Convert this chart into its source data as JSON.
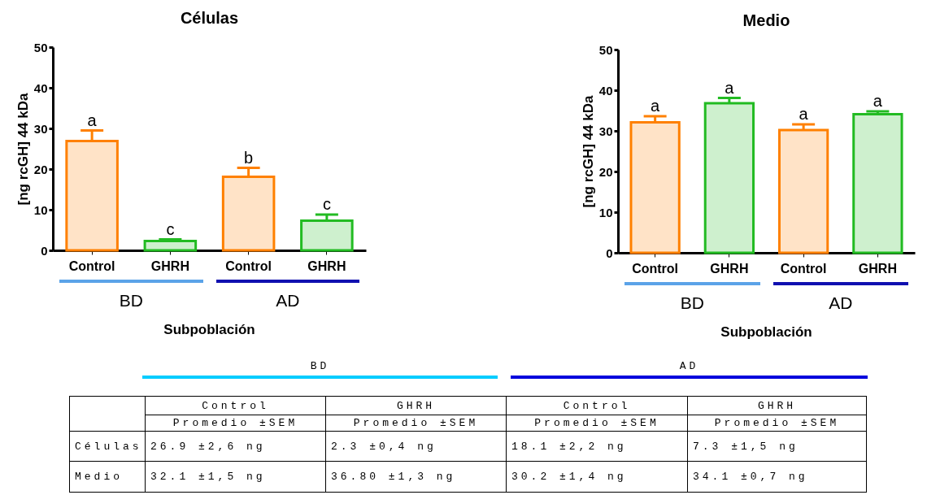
{
  "chart_data": [
    {
      "type": "bar",
      "title": "Células",
      "xlabel": "Subpoblación",
      "ylabel": "[ng rcGH] 44 kDa",
      "categories": [
        "Control",
        "GHRH",
        "Control",
        "GHRH"
      ],
      "values": [
        26.9,
        2.3,
        18.1,
        7.3
      ],
      "colors": [
        "#ff8000",
        "#22bb22",
        "#ff8000",
        "#22bb22"
      ],
      "errors": [
        [
          26.9,
          29.5
        ],
        [
          2.3,
          2.7
        ],
        [
          18.1,
          20.3
        ],
        [
          7.3,
          8.8
        ]
      ],
      "value_labels": [
        "a",
        "c",
        "b",
        "c"
      ],
      "annotations": [
        "BD",
        "AD"
      ],
      "ylim": [
        0,
        50
      ],
      "yticks": [
        0,
        10,
        20,
        30,
        40,
        50
      ]
    },
    {
      "type": "bar",
      "title": "Medio",
      "xlabel": "Subpoblación",
      "ylabel": "[ng rcGH] 44 kDa",
      "categories": [
        "Control",
        "GHRH",
        "Control",
        "GHRH"
      ],
      "values": [
        32.1,
        36.8,
        30.2,
        34.1
      ],
      "colors": [
        "#ff8000",
        "#22bb22",
        "#ff8000",
        "#22bb22"
      ],
      "errors": [
        [
          32.1,
          33.6
        ],
        [
          36.8,
          38.1
        ],
        [
          30.2,
          31.6
        ],
        [
          34.1,
          34.8
        ]
      ],
      "value_labels": [
        "a",
        "a",
        "a",
        "a"
      ],
      "annotations": [
        "BD",
        "AD"
      ],
      "ylim": [
        0,
        50
      ],
      "yticks": [
        0,
        10,
        20,
        30,
        40,
        50
      ]
    },
    {
      "type": "other",
      "annotations": [
        "BD",
        "AD",
        "Promedio ±SEM",
        "Promedio ±SEM",
        "Promedio ±SEM",
        "Promedio ±SEM"
      ],
      "categories": [
        "Control",
        "GHRH",
        "Control",
        "GHRH"
      ],
      "y_categories": [
        "Células",
        "Medio"
      ],
      "cell_labels": [
        [
          "26.9 ±2,6 ng",
          "2.3 ±0,4 ng",
          "18.1 ±2,2 ng",
          "7.3 ±1,5 ng"
        ],
        [
          "32.1 ±1,5 ng",
          "36.80 ±1,3 ng",
          "30.2 ±1,4 ng",
          "34.1 ±0,7 ng"
        ]
      ]
    }
  ]
}
